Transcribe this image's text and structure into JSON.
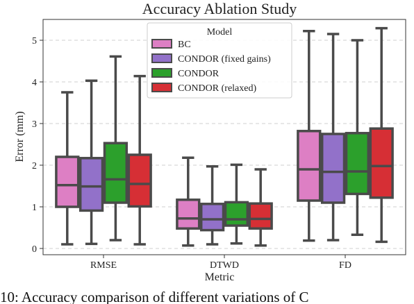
{
  "caption": "10: Accuracy comparison of different variations of C",
  "chart_data": {
    "type": "box",
    "title": "Accuracy Ablation Study",
    "xlabel": "Metric",
    "ylabel": "Error (mm)",
    "ylim": [
      -0.15,
      5.5
    ],
    "yticks": [
      0,
      1,
      2,
      3,
      4,
      5
    ],
    "grid": "horizontal-dashed",
    "legend_title": "Model",
    "legend_placement": "top-center",
    "categories": [
      "RMSE",
      "DTWD",
      "FD"
    ],
    "series": [
      {
        "name": "BC",
        "color": "#dd7fc4",
        "boxes": [
          {
            "min": 0.1,
            "q1": 1.0,
            "median": 1.52,
            "q3": 2.2,
            "max": 3.75
          },
          {
            "min": 0.07,
            "q1": 0.48,
            "median": 0.72,
            "q3": 1.17,
            "max": 2.18
          },
          {
            "min": 0.19,
            "q1": 1.15,
            "median": 1.9,
            "q3": 2.82,
            "max": 5.22
          }
        ]
      },
      {
        "name": "CONDOR (fixed gains)",
        "color": "#9271c9",
        "boxes": [
          {
            "min": 0.11,
            "q1": 0.91,
            "median": 1.49,
            "q3": 2.17,
            "max": 4.03
          },
          {
            "min": 0.1,
            "q1": 0.44,
            "median": 0.7,
            "q3": 1.07,
            "max": 1.97
          },
          {
            "min": 0.2,
            "q1": 1.1,
            "median": 1.84,
            "q3": 2.75,
            "max": 5.15
          }
        ]
      },
      {
        "name": "CONDOR",
        "color": "#2ca02c",
        "boxes": [
          {
            "min": 0.2,
            "q1": 1.1,
            "median": 1.66,
            "q3": 2.53,
            "max": 4.61
          },
          {
            "min": 0.12,
            "q1": 0.55,
            "median": 0.7,
            "q3": 1.11,
            "max": 2.01
          },
          {
            "min": 0.33,
            "q1": 1.31,
            "median": 1.85,
            "q3": 2.77,
            "max": 5.0
          }
        ]
      },
      {
        "name": "CONDOR (relaxed)",
        "color": "#d62f35",
        "boxes": [
          {
            "min": 0.1,
            "q1": 1.01,
            "median": 1.55,
            "q3": 2.25,
            "max": 4.14
          },
          {
            "min": 0.07,
            "q1": 0.48,
            "median": 0.71,
            "q3": 1.08,
            "max": 1.9
          },
          {
            "min": 0.16,
            "q1": 1.22,
            "median": 1.98,
            "q3": 2.88,
            "max": 5.29
          }
        ]
      }
    ]
  }
}
